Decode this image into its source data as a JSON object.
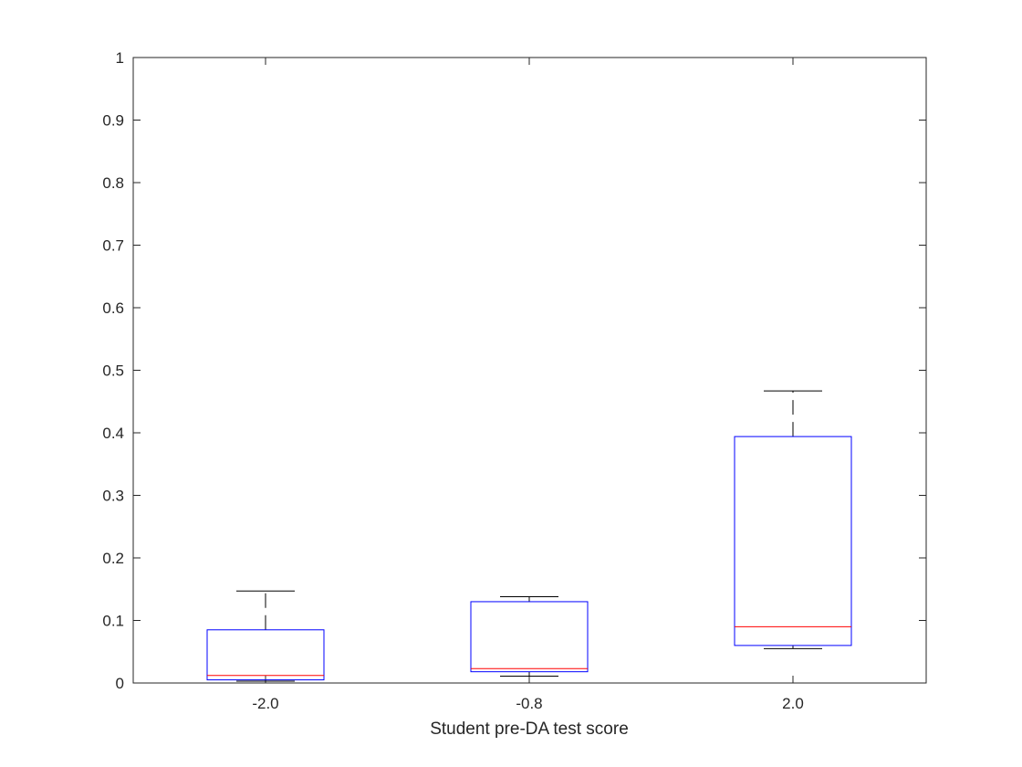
{
  "chart_data": {
    "type": "box",
    "title": "",
    "xlabel": "Student pre-DA test score",
    "ylabel": "",
    "ylim": [
      0,
      1
    ],
    "yticks": [
      "0",
      "0.1",
      "0.2",
      "0.3",
      "0.4",
      "0.5",
      "0.6",
      "0.7",
      "0.8",
      "0.9",
      "1"
    ],
    "categories": [
      "-2.0",
      "-0.8",
      "2.0"
    ],
    "boxes": [
      {
        "category": "-2.0",
        "whisker_low": 0.003,
        "q1": 0.005,
        "median": 0.012,
        "q3": 0.085,
        "whisker_high": 0.147
      },
      {
        "category": "-0.8",
        "whisker_low": 0.011,
        "q1": 0.018,
        "median": 0.023,
        "q3": 0.13,
        "whisker_high": 0.138
      },
      {
        "category": "2.0",
        "whisker_low": 0.055,
        "q1": 0.06,
        "median": 0.09,
        "q3": 0.394,
        "whisker_high": 0.467
      }
    ],
    "grid": false,
    "legend": "none",
    "colors": {
      "box": "#0000ff",
      "median": "#ff0000",
      "whisker": "#000000",
      "axes": "#262626"
    }
  }
}
